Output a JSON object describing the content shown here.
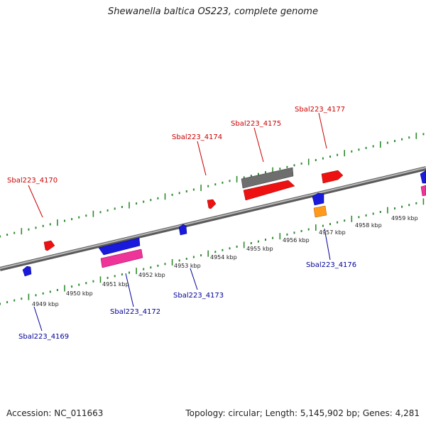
{
  "title": "Shewanella baltica OS223, complete genome",
  "footer": {
    "accession": "Accession: NC_011663",
    "stats": "Topology: circular; Length: 5,145,902 bp; Genes: 4,281"
  },
  "colors": {
    "backbone": "#808080",
    "ruler": "#2e8b2e",
    "label_top": "#cc0000",
    "label_bottom": "#000099"
  },
  "kbp_ticks": [
    "4949 kbp",
    "4950 kbp",
    "4951 kbp",
    "4952 kbp",
    "4953 kbp",
    "4954 kbp",
    "4955 kbp",
    "4956 kbp",
    "4957 kbp",
    "4958 kbp",
    "4959 kbp"
  ],
  "gene_labels": [
    {
      "name": "Sbal223_4170",
      "side": "top"
    },
    {
      "name": "Sbal223_4174",
      "side": "top"
    },
    {
      "name": "Sbal223_4175",
      "side": "top"
    },
    {
      "name": "Sbal223_4177",
      "side": "top"
    },
    {
      "name": "Sbal223_4169",
      "side": "bottom"
    },
    {
      "name": "Sbal223_4172",
      "side": "bottom"
    },
    {
      "name": "Sbal223_4173",
      "side": "bottom"
    },
    {
      "name": "Sbal223_4176",
      "side": "bottom"
    }
  ]
}
